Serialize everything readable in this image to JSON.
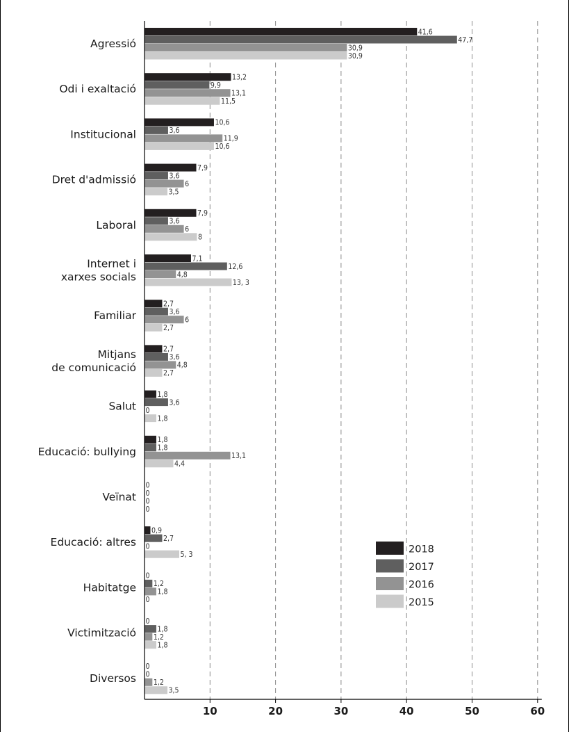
{
  "chart_data": {
    "type": "bar",
    "orientation": "horizontal",
    "categories": [
      "Agressió",
      "Odi i exaltació",
      "Institucional",
      "Dret d'admissió",
      "Laboral",
      "Internet i xarxes socials",
      "Familiar",
      "Mitjans de comunicació",
      "Salut",
      "Educació: bullying",
      "Veïnat",
      "Educació: altres",
      "Habitatge",
      "Victimització",
      "Diversos"
    ],
    "category_lines": [
      [
        "Agressió"
      ],
      [
        "Odi i exaltació"
      ],
      [
        "Institucional"
      ],
      [
        "Dret d'admissió"
      ],
      [
        "Laboral"
      ],
      [
        "Internet i",
        "xarxes socials"
      ],
      [
        "Familiar"
      ],
      [
        "Mitjans",
        "de comunicació"
      ],
      [
        "Salut"
      ],
      [
        "Educació: bullying"
      ],
      [
        "Veïnat"
      ],
      [
        "Educació: altres"
      ],
      [
        "Habitatge"
      ],
      [
        "Victimització"
      ],
      [
        "Diversos"
      ]
    ],
    "series": [
      {
        "name": "2018",
        "color": "#231f20",
        "values": [
          41.6,
          13.2,
          10.6,
          7.9,
          7.9,
          7.1,
          2.7,
          2.7,
          1.8,
          1.8,
          0,
          0.9,
          0,
          0,
          0
        ],
        "labels": [
          "41,6",
          "13,2",
          "10,6",
          "7,9",
          "7,9",
          "7,1",
          "2,7",
          "2,7",
          "1,8",
          "1,8",
          "0",
          "0,9",
          "0",
          "0",
          "0"
        ]
      },
      {
        "name": "2017",
        "color": "#5f5f5f",
        "values": [
          47.7,
          9.9,
          3.6,
          3.6,
          3.6,
          12.6,
          3.6,
          3.6,
          3.6,
          1.8,
          0,
          2.7,
          1.2,
          1.8,
          0
        ],
        "labels": [
          "47,7",
          "9,9",
          "3,6",
          "3,6",
          "3,6",
          "12,6",
          "3,6",
          "3,6",
          "3,6",
          "1,8",
          "0",
          "2,7",
          "1,2",
          "1,8",
          "0"
        ]
      },
      {
        "name": "2016",
        "color": "#939393",
        "values": [
          30.9,
          13.1,
          11.9,
          6,
          6,
          4.8,
          6,
          4.8,
          0,
          13.1,
          0,
          0,
          1.8,
          1.2,
          1.2
        ],
        "labels": [
          "30,9",
          "13,1",
          "11,9",
          "6",
          "6",
          "4,8",
          "6",
          "4,8",
          "0",
          "13,1",
          "0",
          "0",
          "1,8",
          "1,2",
          "1,2"
        ]
      },
      {
        "name": "2015",
        "color": "#cbcbcb",
        "values": [
          30.9,
          11.5,
          10.6,
          3.5,
          8,
          13.3,
          2.7,
          2.7,
          1.8,
          4.4,
          0,
          5.3,
          0,
          1.8,
          3.5
        ],
        "labels": [
          "30,9",
          "11,5",
          "10,6",
          "3,5",
          "8",
          "13, 3",
          "2,7",
          "2,7",
          "1,8",
          "4,4",
          "0",
          "5, 3",
          "0",
          "1,8",
          "3,5"
        ]
      }
    ],
    "xlim": [
      0,
      60
    ],
    "xticks": [
      10,
      20,
      30,
      40,
      50,
      60
    ],
    "grid": "vertical dashed",
    "legend_position": "bottom-right"
  }
}
